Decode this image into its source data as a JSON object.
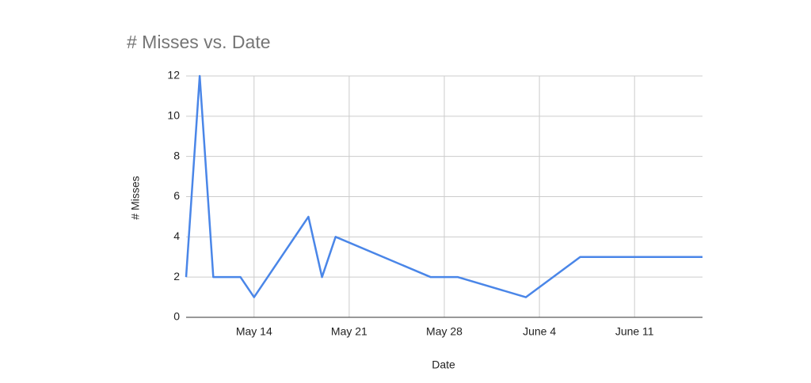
{
  "chart_data": {
    "type": "line",
    "title": "# Misses vs. Date",
    "x_label": "Date",
    "y_label": "# Misses",
    "x": [
      "May 9",
      "May 10",
      "May 11",
      "May 13",
      "May 14",
      "May 18",
      "May 19",
      "May 20",
      "May 27",
      "May 29",
      "June 3",
      "June 7",
      "June 16"
    ],
    "series": [
      {
        "name": "# Misses",
        "color": "#4a86e8",
        "values": [
          2,
          12,
          2,
          2,
          1,
          5,
          2,
          4,
          2,
          2,
          1,
          3,
          3
        ]
      }
    ],
    "xlim": [
      "May 9",
      "June 16"
    ],
    "xticks": [
      "May 14",
      "May 21",
      "May 28",
      "June 4",
      "June 11"
    ],
    "ylim": [
      0,
      12
    ],
    "yticks": [
      0,
      2,
      4,
      6,
      8,
      10,
      12
    ],
    "grid": true
  }
}
